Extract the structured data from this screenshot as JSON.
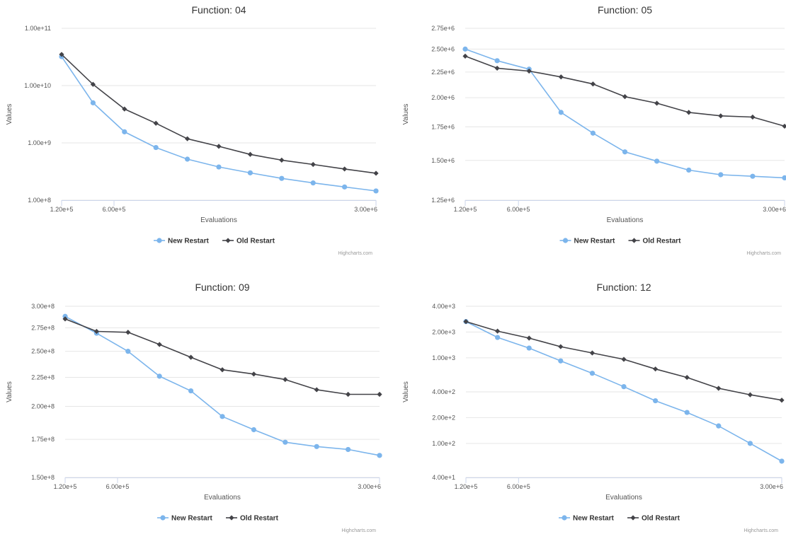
{
  "chart_data": [
    {
      "type": "line",
      "title": "Function: 04",
      "xlabel": "Evaluations",
      "ylabel": "Values",
      "yscale": "log",
      "ylim": [
        100000000,
        100000000000
      ],
      "yticks": [
        100000000,
        1000000000,
        10000000000,
        100000000000
      ],
      "ytick_labels": [
        "1.00e+8",
        "1.00e+9",
        "1.00e+10",
        "1.00e+11"
      ],
      "x": [
        120000,
        408000,
        696000,
        984000,
        1272000,
        1560000,
        1848000,
        2136000,
        2424000,
        2712000,
        3000000
      ],
      "xticks": [
        120000,
        600000,
        3000000
      ],
      "xtick_labels": [
        "1.20e+5",
        "6.00e+5",
        "3.00e+6"
      ],
      "grid": true,
      "legend": "bottom-center",
      "credits": "Highcharts.com",
      "series": [
        {
          "name": "New Restart",
          "color": "#7cb5ec",
          "marker": "circle",
          "values": [
            32000000000,
            5000000000,
            1560000000,
            830000000,
            520000000,
            380000000,
            300000000,
            240000000,
            200000000,
            170000000,
            145000000
          ]
        },
        {
          "name": "Old Restart",
          "color": "#434348",
          "marker": "diamond",
          "values": [
            35000000000,
            10500000000,
            3900000000,
            2200000000,
            1180000000,
            870000000,
            630000000,
            500000000,
            420000000,
            350000000,
            295000000
          ]
        }
      ]
    },
    {
      "type": "line",
      "title": "Function: 05",
      "xlabel": "Evaluations",
      "ylabel": "Values",
      "yscale": "log",
      "ylim": [
        1250000,
        2750000
      ],
      "yticks": [
        1250000,
        1500000,
        1750000,
        2000000,
        2250000,
        2500000,
        2750000
      ],
      "ytick_labels": [
        "1.25e+6",
        "1.50e+6",
        "1.75e+6",
        "2.00e+6",
        "2.25e+6",
        "2.50e+6",
        "2.75e+6"
      ],
      "x": [
        120000,
        408000,
        696000,
        984000,
        1272000,
        1560000,
        1848000,
        2136000,
        2424000,
        2712000,
        3000000
      ],
      "xticks": [
        120000,
        600000,
        3000000
      ],
      "xtick_labels": [
        "1.20e+5",
        "6.00e+5",
        "3.00e+6"
      ],
      "grid": true,
      "legend": "bottom-center",
      "credits": "Highcharts.com",
      "series": [
        {
          "name": "New Restart",
          "color": "#7cb5ec",
          "marker": "circle",
          "values": [
            2500000,
            2370000,
            2280000,
            1870000,
            1700000,
            1560000,
            1495000,
            1435000,
            1405000,
            1395000,
            1385000
          ]
        },
        {
          "name": "Old Restart",
          "color": "#434348",
          "marker": "diamond",
          "values": [
            2420000,
            2290000,
            2260000,
            2200000,
            2130000,
            2010000,
            1950000,
            1870000,
            1840000,
            1830000,
            1755000
          ]
        }
      ]
    },
    {
      "type": "line",
      "title": "Function: 09",
      "xlabel": "Evaluations",
      "ylabel": "Values",
      "yscale": "log",
      "ylim": [
        150000000,
        300000000
      ],
      "yticks": [
        150000000,
        175000000,
        200000000,
        225000000,
        250000000,
        275000000,
        300000000
      ],
      "ytick_labels": [
        "1.50e+8",
        "1.75e+8",
        "2.00e+8",
        "2.25e+8",
        "2.50e+8",
        "2.75e+8",
        "3.00e+8"
      ],
      "x": [
        120000,
        408000,
        696000,
        984000,
        1272000,
        1560000,
        1848000,
        2136000,
        2424000,
        2712000,
        3000000
      ],
      "xticks": [
        120000,
        600000,
        3000000
      ],
      "xtick_labels": [
        "1.20e+5",
        "6.00e+5",
        "3.00e+6"
      ],
      "grid": true,
      "legend": "bottom-center",
      "credits": "Highcharts.com",
      "series": [
        {
          "name": "New Restart",
          "color": "#7cb5ec",
          "marker": "circle",
          "values": [
            288000000,
            269000000,
            250000000,
            226000000,
            213000000,
            192000000,
            182000000,
            173000000,
            170000000,
            168000000,
            164000000
          ]
        },
        {
          "name": "Old Restart",
          "color": "#434348",
          "marker": "diamond",
          "values": [
            285000000,
            271000000,
            270000000,
            257000000,
            244000000,
            232000000,
            228000000,
            223000000,
            214000000,
            210000000,
            210000000
          ]
        }
      ]
    },
    {
      "type": "line",
      "title": "Function: 12",
      "xlabel": "Evaluations",
      "ylabel": "Values",
      "yscale": "log",
      "ylim": [
        40,
        4000
      ],
      "yticks": [
        40,
        100,
        200,
        400,
        1000,
        2000,
        4000
      ],
      "ytick_labels": [
        "4.00e+1",
        "1.00e+2",
        "2.00e+2",
        "4.00e+2",
        "1.00e+3",
        "2.00e+3",
        "4.00e+3"
      ],
      "x": [
        120000,
        408000,
        696000,
        984000,
        1272000,
        1560000,
        1848000,
        2136000,
        2424000,
        2712000,
        3000000
      ],
      "xticks": [
        120000,
        600000,
        3000000
      ],
      "xtick_labels": [
        "1.20e+5",
        "6.00e+5",
        "3.00e+6"
      ],
      "grid": true,
      "legend": "bottom-center",
      "credits": "Highcharts.com",
      "series": [
        {
          "name": "New Restart",
          "color": "#7cb5ec",
          "marker": "circle",
          "values": [
            2650,
            1730,
            1300,
            920,
            660,
            460,
            315,
            230,
            160,
            100,
            62
          ]
        },
        {
          "name": "Old Restart",
          "color": "#434348",
          "marker": "diamond",
          "values": [
            2650,
            2050,
            1700,
            1350,
            1140,
            960,
            740,
            590,
            440,
            370,
            320
          ]
        }
      ]
    }
  ]
}
